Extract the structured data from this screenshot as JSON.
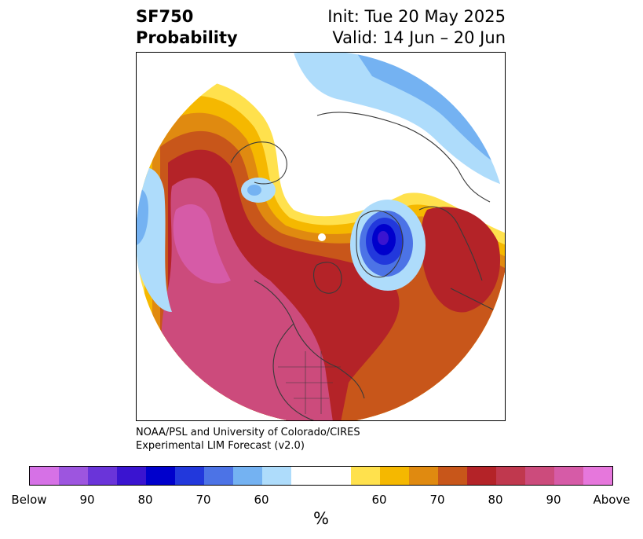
{
  "title": {
    "left_line1": "SF750",
    "left_line2": "Probability",
    "right_line1": "Init: Tue 20 May 2025",
    "right_line2": "Valid: 14 Jun – 20 Jun"
  },
  "credit": {
    "line1": "NOAA/PSL and University of Colorado/CIRES",
    "line2": "Experimental LIM Forecast (v2.0)"
  },
  "colorbar": {
    "unit": "%",
    "below_colors": [
      "#d671e6",
      "#9d55df",
      "#6a34d9",
      "#3a14d0",
      "#0000cc",
      "#2238dc",
      "#4c73e6",
      "#74b2f2",
      "#aedcfb"
    ],
    "neutral_color": "#ffffff",
    "above_colors": [
      "#ffe14d",
      "#f5b800",
      "#e08a10",
      "#c8561a",
      "#b42328",
      "#c0384e",
      "#cc4b7c",
      "#d65ba7",
      "#e677dc"
    ],
    "tick_labels": [
      "Below",
      "90",
      "80",
      "70",
      "60",
      "60",
      "70",
      "80",
      "90",
      "Above"
    ]
  },
  "map": {
    "projection": "north-polar-stereographic",
    "region_colors": {
      "above_extreme": "#d65ba7",
      "above_90": "#cc4b7c",
      "above_80": "#b42328",
      "above_70": "#c8561a",
      "above_65": "#e08a10",
      "above_60": "#f5b800",
      "above_55": "#ffe14d",
      "below_60": "#aedcfb",
      "below_65": "#74b2f2",
      "below_70": "#4c73e6",
      "below_75": "#2238dc",
      "below_80": "#0000cc",
      "below_85": "#3a14d0",
      "coastline": "#3a3a3a"
    }
  }
}
